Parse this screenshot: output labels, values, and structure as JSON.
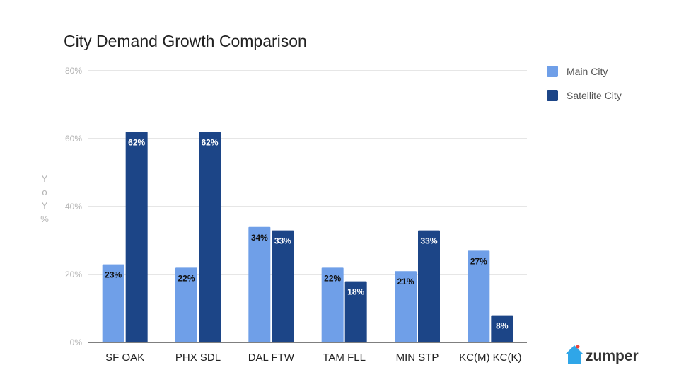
{
  "chart_data": {
    "type": "bar",
    "title": "City Demand Growth Comparison",
    "xlabel": "",
    "ylabel": "YoY%",
    "ylim": [
      0,
      80
    ],
    "y_ticks": [
      "0%",
      "20%",
      "40%",
      "60%",
      "80%"
    ],
    "grid": true,
    "legend_position": "top-right",
    "categories": [
      "SF OAK",
      "PHX SDL",
      "DAL FTW",
      "TAM FLL",
      "MIN STP",
      "KC(M) KC(K)"
    ],
    "series": [
      {
        "name": "Main City",
        "color": "#6f9fe8",
        "label_color": "#111111",
        "values": [
          23,
          22,
          34,
          22,
          21,
          27
        ],
        "data_labels": [
          "23%",
          "22%",
          "34%",
          "22%",
          "21%",
          "27%"
        ]
      },
      {
        "name": "Satellite City",
        "color": "#1c4587",
        "label_color": "#ffffff",
        "values": [
          62,
          62,
          33,
          18,
          33,
          8
        ],
        "data_labels": [
          "62%",
          "62%",
          "33%",
          "18%",
          "33%",
          "8%"
        ]
      }
    ]
  },
  "brand": {
    "name": "zumper",
    "icon": "house-icon",
    "icon_color": "#2fa6e8",
    "accent_color": "#e8453c"
  }
}
